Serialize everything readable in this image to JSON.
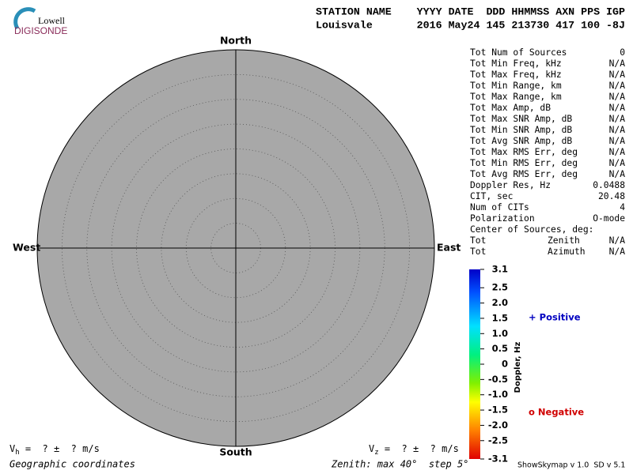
{
  "logo": {
    "top": "Lowell",
    "bottom": "DIGISONDE"
  },
  "header": {
    "line1": "STATION NAME    YYYY DATE  DDD HHMMSS AXN PPS IGP",
    "line2": "Louisvale       2016 May24 145 213730 417 100 -8J"
  },
  "plot": {
    "north": "North",
    "south": "South",
    "west": "West",
    "east": "East"
  },
  "stats": [
    {
      "label": "Tot Num of Sources",
      "value": "0",
      "color": "#a8a8a8"
    },
    {
      "label": "Tot Min Freq, kHz",
      "value": "N/A",
      "color": "#a8a8a8"
    },
    {
      "label": "Tot Max Freq, kHz",
      "value": "N/A",
      "color": "#a8a8a8"
    },
    {
      "label": "Tot Min Range, km",
      "value": "N/A",
      "color": "#a8a8a8"
    },
    {
      "label": "Tot Max Range, km",
      "value": "N/A",
      "color": "#a8a8a8"
    },
    {
      "label": "Tot Max Amp, dB",
      "value": "N/A",
      "color": "#a8a8a8"
    },
    {
      "label": "Tot Max SNR Amp, dB",
      "value": "N/A",
      "color": "#a8a8a8"
    },
    {
      "label": "Tot Min SNR Amp, dB",
      "value": "N/A",
      "color": "#a8a8a8"
    },
    {
      "label": "Tot Avg SNR Amp, dB",
      "value": "N/A",
      "color": "#a8a8a8"
    },
    {
      "label": "Tot Max RMS Err, deg",
      "value": "N/A",
      "color": "#a8a8a8"
    },
    {
      "label": "Tot Min RMS Err, deg",
      "value": "N/A",
      "color": "#a8a8a8"
    },
    {
      "label": "Tot Avg RMS Err, deg",
      "value": "N/A",
      "color": "#a8a8a8"
    },
    {
      "label": "Doppler Res, Hz",
      "value": "0.0488",
      "color": "#000000"
    },
    {
      "label": "CIT, sec",
      "value": "20.48",
      "color": "#000000"
    },
    {
      "label": "Num of CITs",
      "value": "4",
      "color": "#000000"
    },
    {
      "label": "Polarization",
      "value": "O-mode",
      "color": "#000000"
    },
    {
      "label": "Center of Sources, deg:"
    },
    {
      "label": "Tot",
      "sublabel": "Zenith",
      "value": "N/A",
      "color": "#a8a8a8"
    },
    {
      "label": "Tot",
      "sublabel": "Azimuth",
      "value": "N/A",
      "color": "#a8a8a8"
    }
  ],
  "colorbar": {
    "title": "Doppler, Hz",
    "lim": [
      -3.1,
      3.1
    ],
    "ticks": [
      3.1,
      2.5,
      {
        "value": 2,
        "label": "2.0"
      },
      1.5,
      {
        "value": 1,
        "label": "1.0"
      },
      0.5,
      0,
      -0.5,
      {
        "value": -1,
        "label": "-1.0"
      },
      -1.5,
      {
        "value": -2,
        "label": "-2.0"
      },
      -2.5,
      -3.1
    ],
    "positive": "+ Positive",
    "negative": "o Negative"
  },
  "footer": {
    "vh": {
      "symbol": "V",
      "subscript": "h",
      "text": " =  ? ±  ? m/s"
    },
    "vz": {
      "symbol": "V",
      "subscript": "z",
      "text": " =  ? ±  ? m/s"
    },
    "coords": "Geographic coordinates",
    "zenith": "Zenith: max 40°  step 5°",
    "version": "ShowSkymap v 1.0  SD v 5.1"
  }
}
